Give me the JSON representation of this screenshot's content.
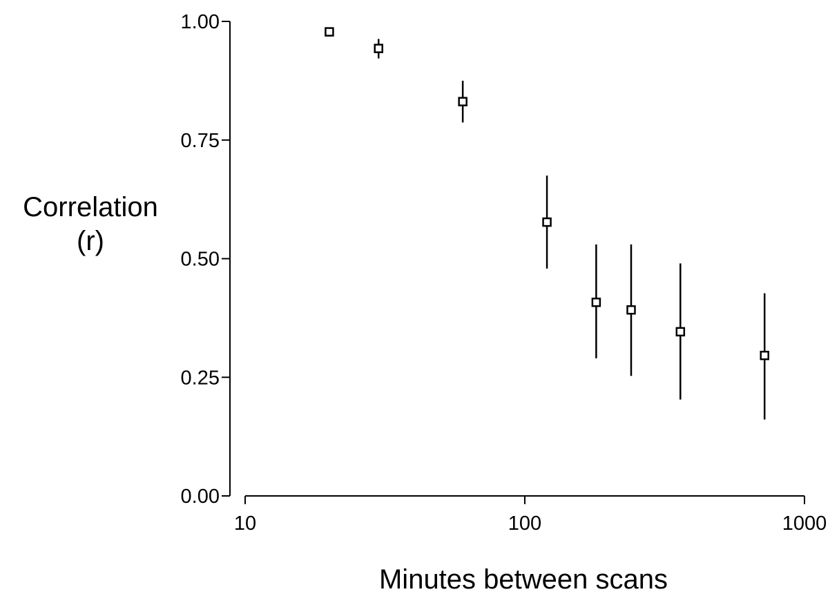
{
  "chart_data": {
    "type": "scatter",
    "xlabel": "Minutes between scans",
    "ylabel": [
      "Correlation",
      "(r)"
    ],
    "x_scale": "log",
    "xlim": [
      10,
      1000
    ],
    "ylim": [
      0,
      1
    ],
    "x_ticks": [
      {
        "value": 10,
        "label": "10"
      },
      {
        "value": 100,
        "label": "100"
      },
      {
        "value": 1000,
        "label": "1000"
      }
    ],
    "y_ticks": [
      {
        "value": 0,
        "label": "0.00"
      },
      {
        "value": 0.25,
        "label": "0.25"
      },
      {
        "value": 0.5,
        "label": "0.50"
      },
      {
        "value": 0.75,
        "label": "0.75"
      },
      {
        "value": 1,
        "label": "1.00"
      }
    ],
    "grid": false,
    "marker": "open-square",
    "points": [
      {
        "x": 20,
        "y": 0.978,
        "err_low": 0.968,
        "err_high": 0.985
      },
      {
        "x": 30,
        "y": 0.943,
        "err_low": 0.922,
        "err_high": 0.963
      },
      {
        "x": 60,
        "y": 0.831,
        "err_low": 0.787,
        "err_high": 0.875
      },
      {
        "x": 120,
        "y": 0.577,
        "err_low": 0.479,
        "err_high": 0.675
      },
      {
        "x": 180,
        "y": 0.408,
        "err_low": 0.29,
        "err_high": 0.53
      },
      {
        "x": 240,
        "y": 0.392,
        "err_low": 0.253,
        "err_high": 0.53
      },
      {
        "x": 360,
        "y": 0.346,
        "err_low": 0.203,
        "err_high": 0.49
      },
      {
        "x": 720,
        "y": 0.296,
        "err_low": 0.161,
        "err_high": 0.427
      }
    ]
  }
}
